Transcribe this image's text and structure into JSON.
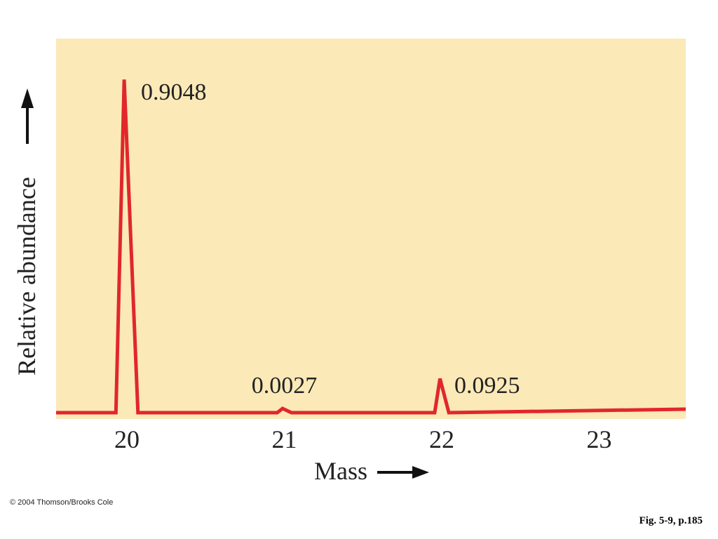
{
  "chart_data": {
    "type": "line",
    "xlabel": "Mass",
    "ylabel": "Relative abundance",
    "x_ticks": [
      "20",
      "21",
      "22",
      "23"
    ],
    "xlim": [
      19.55,
      23.55
    ],
    "ylim": [
      0,
      1.0
    ],
    "peaks": [
      {
        "x": 20,
        "y": 0.9048,
        "label": "0.9048"
      },
      {
        "x": 21,
        "y": 0.0027,
        "label": "0.0027"
      },
      {
        "x": 22,
        "y": 0.0925,
        "label": "0.0925"
      }
    ],
    "colors": {
      "line": "#e1272b",
      "background": "#fbe9b8"
    },
    "grid": false
  },
  "footer": {
    "copyright": "© 2004 Thomson/Brooks Cole",
    "caption": "Fig. 5-9, p.185"
  }
}
